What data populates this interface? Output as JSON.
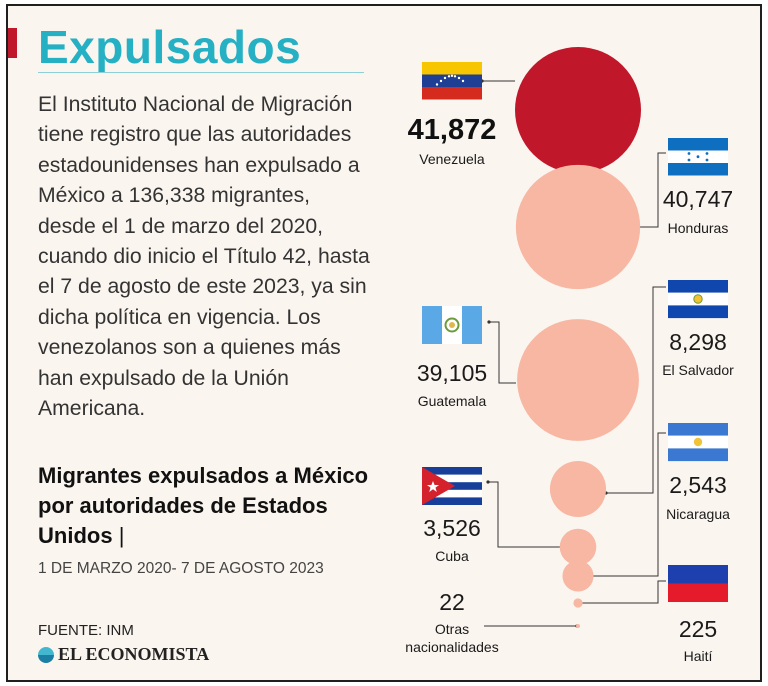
{
  "title": "Expulsados",
  "intro": "El Instituto Nacional de Migración tiene registro que las autoridades estadounidenses han expulsado a México a 136,338 migrantes, desde el 1 de marzo del 2020, cuando dio inicio el Título 42, hasta el 7 de agosto de este 2023, ya sin dicha política en vigencia. Los venezolanos son a quienes más han expulsado de la Unión Americana.",
  "subtitle": "Migrantes expulsados a México por autoridades de Estados Unidos",
  "subtitle_sep": "|",
  "date_range": "1 DE MARZO 2020- 7 DE AGOSTO 2023",
  "source": "FUENTE: INM",
  "brand": "EL ECONOMISTA",
  "colors": {
    "accent": "#c0172b",
    "title": "#25b0c4",
    "highlight_bubble": "#c0172b",
    "bubble": "#f7b7a3",
    "leader": "#333333"
  },
  "chart_data": {
    "type": "bubble",
    "title": "Migrantes expulsados a México por autoridades de Estados Unidos",
    "unit": "migrantes",
    "categories": [
      "Venezuela",
      "Honduras",
      "Guatemala",
      "El Salvador",
      "Cuba",
      "Nicaragua",
      "Haití",
      "Otras nacionalidades"
    ],
    "values": [
      41872,
      40747,
      39105,
      8298,
      3526,
      2543,
      225,
      22
    ],
    "labels": [
      "41,872",
      "40,747",
      "39,105",
      "8,298",
      "3,526",
      "2,543",
      "225",
      "22"
    ],
    "highlight": "Venezuela",
    "icons": [
      "flag-venezuela",
      "flag-honduras",
      "flag-guatemala",
      "flag-el-salvador",
      "flag-cuba",
      "flag-nicaragua",
      "flag-haiti",
      ""
    ]
  }
}
